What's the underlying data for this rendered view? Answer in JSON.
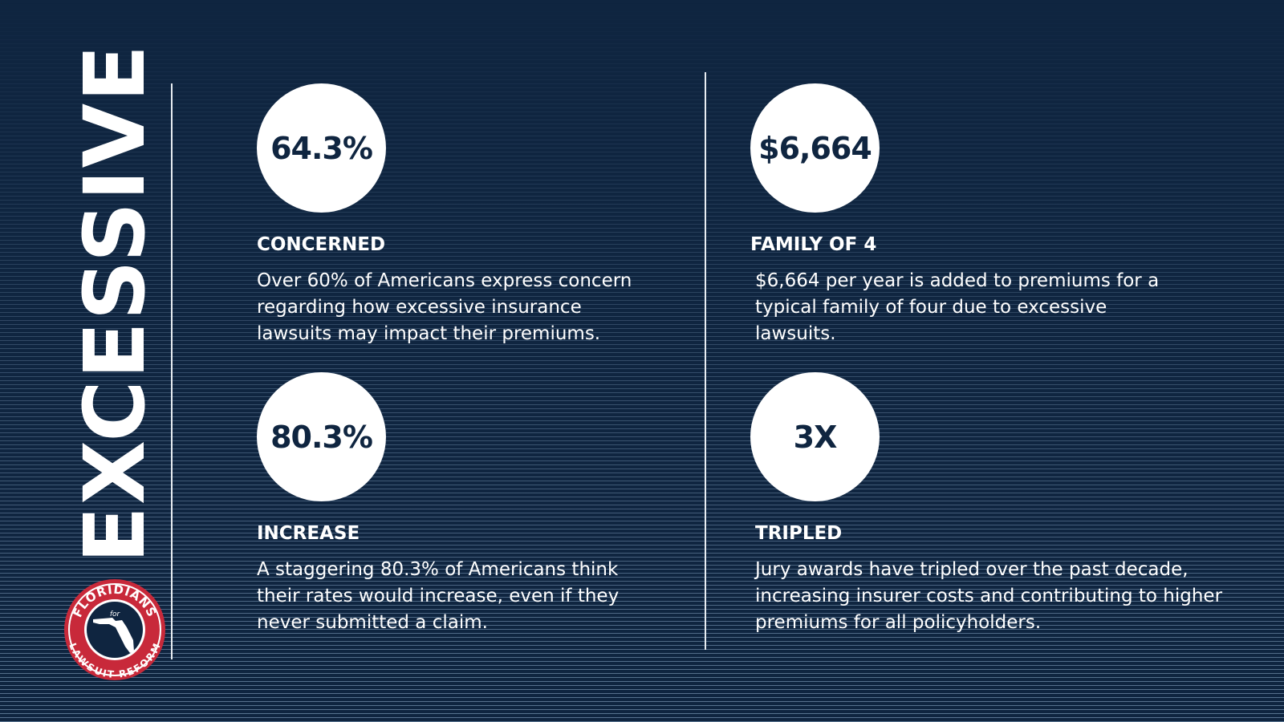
{
  "title": "EXCESSIVE",
  "logo": {
    "top": "FLORIDIANS",
    "middle": "for",
    "bottom": "LAWSUIT REFORM"
  },
  "stats": [
    {
      "value": "64.3%",
      "heading": "CONCERNED",
      "text": "Over 60% of Americans express concern regarding how excessive insurance lawsuits may impact their premiums."
    },
    {
      "value": "$6,664",
      "heading": "FAMILY OF 4",
      "text": "$6,664 per year is added to premiums for a typical family of four due to excessive lawsuits."
    },
    {
      "value": "80.3%",
      "heading": "INCREASE",
      "text": "A staggering 80.3% of Americans think their rates would increase, even if they never submitted a claim."
    },
    {
      "value": "3X",
      "heading": "TRIPLED",
      "text": "Jury awards have tripled over the past decade, increasing insurer costs and contributing to higher premiums for all policyholders."
    }
  ]
}
